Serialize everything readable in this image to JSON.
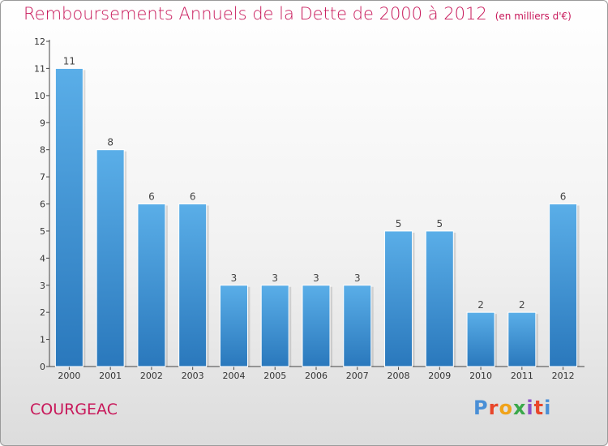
{
  "header": {
    "title": "Remboursements Annuels de la Dette de 2000 à 2012",
    "unit": "(en milliers d'€)"
  },
  "footer": {
    "commune": "COURGEAC",
    "logo": "Proxiti",
    "logo_colors": [
      "#4a8fd6",
      "#e8462a",
      "#f0a31a",
      "#3aa84a",
      "#8a4fc6",
      "#e8462a",
      "#4a8fd6"
    ]
  },
  "chart_data": {
    "type": "bar",
    "title": "Remboursements Annuels de la Dette de 2000 à 2012",
    "subtitle": "(en milliers d'€)",
    "xlabel": "",
    "ylabel": "",
    "categories": [
      "2000",
      "2001",
      "2002",
      "2003",
      "2004",
      "2005",
      "2006",
      "2007",
      "2008",
      "2009",
      "2010",
      "2011",
      "2012"
    ],
    "values": [
      11,
      8,
      6,
      6,
      3,
      3,
      3,
      3,
      5,
      5,
      2,
      2,
      6
    ],
    "data_labels": [
      "11",
      "8",
      "6",
      "6",
      "3",
      "3",
      "3",
      "3",
      "5",
      "5",
      "2",
      "2",
      "6"
    ],
    "yticks": [
      "0",
      "1",
      "2",
      "3",
      "4",
      "5",
      "6",
      "7",
      "8",
      "9",
      "10",
      "11",
      "12"
    ],
    "ylim": [
      0,
      12
    ],
    "grid": false,
    "bar_color_top": "#5aaee8",
    "bar_color_bottom": "#2a78bc"
  }
}
